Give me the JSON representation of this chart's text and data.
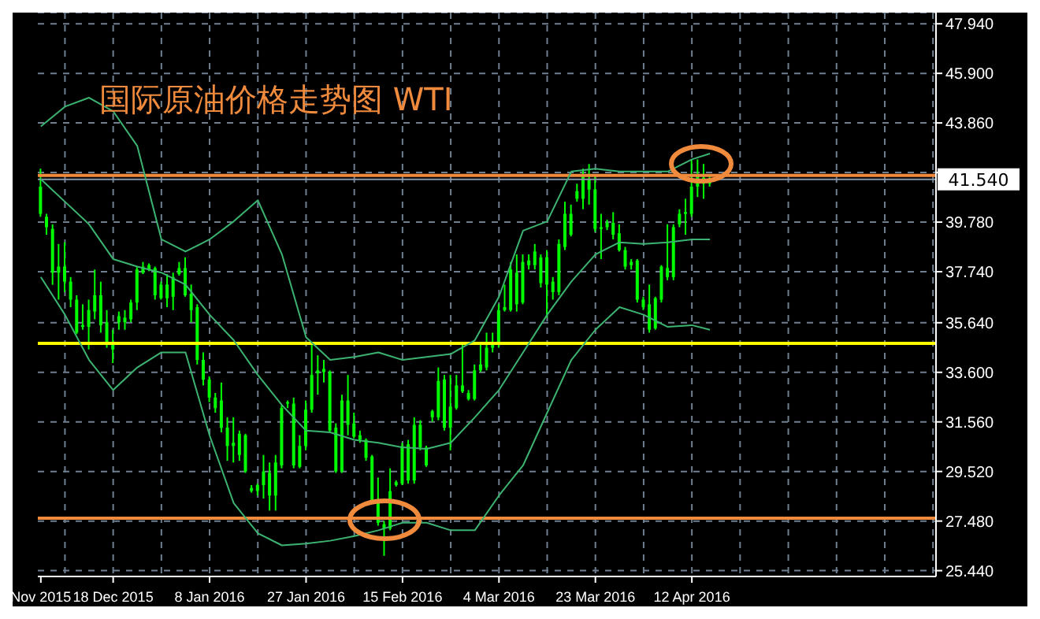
{
  "chart_data": {
    "type": "candlestick",
    "title": "国际原油价格走势图 WTI",
    "categories": [
      "Nov 2015",
      null,
      null,
      null,
      null,
      null,
      null,
      null,
      null,
      null,
      null,
      null,
      "18 Dec 2015",
      null,
      null,
      null,
      null,
      null,
      null,
      null,
      null,
      null,
      null,
      null,
      null,
      null,
      null,
      null,
      "8 Jan 2016",
      null,
      null,
      null,
      null,
      null,
      null,
      null,
      null,
      null,
      null,
      null,
      null,
      null,
      null,
      null,
      "27 Jan 2016",
      null,
      null,
      null,
      null,
      null,
      null,
      null,
      null,
      null,
      null,
      null,
      null,
      null,
      null,
      null,
      "15 Feb 2016",
      null,
      null,
      null,
      null,
      null,
      null,
      null,
      null,
      null,
      null,
      null,
      null,
      null,
      null,
      null,
      "4 Mar 2016",
      null,
      null,
      null,
      null,
      null,
      null,
      null,
      null,
      null,
      null,
      null,
      null,
      null,
      null,
      null,
      "23 Mar 2016",
      null,
      null,
      null,
      null,
      null,
      null,
      null,
      null,
      null,
      null,
      null,
      null,
      null,
      null,
      null,
      "12 Apr 2016",
      null,
      null,
      null,
      null,
      null,
      null,
      null,
      null,
      null,
      null,
      null,
      null,
      null,
      null,
      null,
      null,
      null,
      null,
      null,
      null,
      null,
      null,
      null,
      null,
      null,
      null,
      null,
      null,
      null,
      null,
      null,
      null,
      null,
      null,
      null,
      null,
      null,
      null,
      null,
      null
    ],
    "series": [
      {
        "type": "candlestick",
        "color": "#00ff00",
        "ohlc": [
          [
            41.24,
            41.98,
            40.0,
            40.12
          ],
          [
            40.0,
            40.12,
            39.26,
            39.57
          ],
          [
            39.5,
            39.69,
            37.2,
            37.7
          ],
          [
            37.95,
            38.88,
            36.59,
            37.7
          ],
          [
            37.95,
            38.95,
            36.9,
            37.33
          ],
          [
            37.33,
            37.52,
            36.28,
            36.59
          ],
          [
            36.59,
            36.77,
            35.17,
            35.23
          ],
          [
            35.54,
            36.4,
            35.35,
            35.47
          ],
          [
            36.16,
            36.59,
            34.54,
            35.47
          ],
          [
            36.77,
            37.83,
            35.78,
            36.1
          ],
          [
            36.77,
            37.33,
            35.23,
            35.54
          ],
          [
            35.66,
            36.16,
            34.61,
            34.73
          ],
          [
            34.85,
            35.35,
            33.98,
            34.54
          ],
          [
            35.91,
            36.1,
            35.35,
            35.66
          ],
          [
            35.85,
            36.16,
            35.35,
            35.66
          ],
          [
            36.47,
            36.59,
            35.66,
            35.78
          ],
          [
            37.83,
            37.95,
            36.16,
            36.47
          ],
          [
            37.95,
            38.14,
            37.64,
            37.7
          ],
          [
            38.01,
            38.08,
            37.76,
            37.83
          ],
          [
            37.89,
            37.95,
            36.59,
            36.77
          ],
          [
            37.21,
            37.33,
            36.59,
            36.65
          ],
          [
            37.21,
            37.64,
            36.28,
            36.65
          ],
          [
            37.52,
            37.7,
            36.16,
            36.71
          ],
          [
            37.89,
            38.14,
            37.58,
            37.64
          ],
          [
            37.89,
            38.33,
            36.71,
            36.77
          ],
          [
            36.83,
            37.21,
            35.66,
            36.16
          ],
          [
            36.28,
            36.4,
            33.92,
            34.11
          ],
          [
            34.11,
            34.42,
            33.06,
            33.3
          ],
          [
            33.3,
            33.43,
            32.37,
            32.56
          ],
          [
            32.56,
            32.75,
            31.94,
            32.13
          ],
          [
            32.44,
            33.18,
            31.13,
            31.32
          ],
          [
            31.32,
            31.75,
            29.96,
            30.57
          ],
          [
            30.7,
            31.75,
            29.89,
            30.57
          ],
          [
            31.07,
            31.2,
            29.96,
            30.2
          ],
          [
            31.01,
            31.07,
            29.46,
            29.52
          ],
          [
            28.84,
            28.96,
            28.65,
            28.72
          ],
          [
            28.96,
            29.02,
            28.53,
            28.72
          ],
          [
            29.52,
            30.2,
            28.41,
            28.96
          ],
          [
            29.46,
            29.89,
            27.91,
            28.53
          ],
          [
            29.89,
            30.2,
            27.91,
            28.53
          ],
          [
            32.13,
            32.25,
            29.65,
            29.77
          ],
          [
            32.37,
            32.44,
            32.13,
            32.31
          ],
          [
            32.31,
            32.56,
            29.65,
            29.77
          ],
          [
            30.57,
            31.01,
            29.65,
            29.71
          ],
          [
            32.06,
            32.44,
            30.39,
            30.57
          ],
          [
            33.49,
            34.85,
            31.94,
            32.06
          ],
          [
            33.68,
            34.3,
            32.68,
            33.56
          ],
          [
            33.74,
            34.11,
            33.18,
            33.61
          ],
          [
            33.61,
            33.68,
            31.13,
            31.2
          ],
          [
            31.32,
            31.5,
            29.46,
            29.52
          ],
          [
            32.44,
            32.68,
            29.46,
            29.52
          ],
          [
            32.44,
            33.49,
            31.01,
            31.44
          ],
          [
            31.5,
            31.94,
            30.88,
            30.95
          ],
          [
            31.01,
            31.2,
            30.7,
            30.82
          ],
          [
            30.82,
            30.88,
            29.96,
            30.08
          ],
          [
            30.14,
            30.2,
            28.22,
            28.34
          ],
          [
            28.34,
            29.27,
            27.29,
            27.41
          ],
          [
            27.35,
            27.48,
            26.05,
            27.17
          ],
          [
            28.71,
            29.65,
            27.1,
            27.17
          ],
          [
            29.08,
            29.15,
            28.9,
            28.96
          ],
          [
            30.57,
            30.7,
            28.96,
            29.02
          ],
          [
            30.64,
            30.82,
            29.02,
            29.15
          ],
          [
            31.44,
            31.75,
            29.02,
            29.15
          ],
          [
            31.44,
            31.63,
            30.39,
            30.51
          ],
          [
            30.51,
            30.58,
            29.71,
            29.77
          ],
          [
            32.0,
            32.06,
            31.57,
            31.75
          ],
          [
            33.24,
            33.8,
            31.63,
            31.75
          ],
          [
            33.3,
            33.49,
            31.2,
            31.32
          ],
          [
            32.19,
            33.49,
            30.39,
            31.32
          ],
          [
            33.06,
            33.49,
            32.06,
            32.13
          ],
          [
            33.06,
            34.73,
            32.75,
            32.81
          ],
          [
            32.75,
            32.87,
            32.44,
            32.5
          ],
          [
            33.68,
            33.92,
            32.44,
            32.5
          ],
          [
            33.92,
            34.73,
            33.61,
            33.68
          ],
          [
            34.61,
            35.23,
            33.68,
            33.8
          ],
          [
            34.73,
            35.23,
            34.42,
            34.61
          ],
          [
            36.16,
            36.4,
            34.61,
            34.73
          ],
          [
            36.28,
            37.21,
            36.1,
            36.16
          ],
          [
            37.83,
            38.14,
            36.1,
            36.16
          ],
          [
            37.7,
            38.45,
            36.1,
            36.4
          ],
          [
            38.14,
            38.45,
            36.4,
            36.47
          ],
          [
            38.2,
            38.45,
            37.83,
            38.01
          ],
          [
            38.57,
            38.88,
            37.83,
            38.01
          ],
          [
            38.33,
            38.45,
            37.09,
            37.27
          ],
          [
            38.33,
            38.63,
            35.85,
            37.21
          ],
          [
            37.33,
            37.52,
            36.59,
            36.9
          ],
          [
            38.88,
            39.07,
            36.77,
            36.9
          ],
          [
            40.12,
            40.62,
            38.63,
            38.76
          ],
          [
            40.12,
            40.5,
            39.19,
            39.26
          ],
          [
            41.05,
            41.36,
            40.62,
            40.74
          ],
          [
            41.67,
            41.98,
            40.31,
            40.74
          ],
          [
            41.55,
            42.17,
            40.5,
            41.12
          ],
          [
            41.12,
            41.67,
            39.38,
            39.5
          ],
          [
            39.57,
            40.12,
            38.26,
            39.5
          ],
          [
            39.75,
            39.88,
            39.45,
            39.57
          ],
          [
            39.75,
            40.19,
            39.07,
            39.26
          ],
          [
            39.32,
            39.69,
            38.57,
            38.63
          ],
          [
            38.63,
            38.76,
            37.83,
            37.95
          ],
          [
            38.14,
            38.26,
            37.83,
            38.01
          ],
          [
            38.2,
            38.26,
            36.47,
            36.59
          ],
          [
            36.59,
            36.71,
            36.16,
            36.28
          ],
          [
            36.4,
            37.21,
            35.23,
            35.35
          ],
          [
            36.65,
            36.71,
            35.35,
            35.41
          ],
          [
            37.95,
            38.01,
            36.47,
            36.59
          ],
          [
            37.89,
            39.69,
            37.39,
            37.52
          ],
          [
            39.57,
            39.69,
            37.39,
            37.52
          ],
          [
            40.12,
            40.31,
            39.57,
            39.69
          ],
          [
            40.19,
            40.74,
            39.26,
            40.12
          ],
          [
            41.24,
            42.36,
            40.0,
            40.12
          ],
          [
            41.67,
            42.36,
            40.81,
            41.24
          ],
          [
            41.61,
            42.17,
            40.74,
            41.36
          ],
          [
            41.49,
            41.67,
            41.24,
            41.36
          ],
          null,
          null,
          null,
          null,
          null,
          null,
          null,
          null,
          null,
          null,
          null,
          null,
          null,
          null,
          null,
          null,
          null,
          null,
          null,
          null,
          null,
          null,
          null,
          null,
          null,
          null,
          null,
          null,
          null,
          null,
          null,
          null,
          null,
          null,
          null,
          null,
          null
        ]
      },
      {
        "type": "line",
        "color": "#3cb371",
        "values": [
          43.72,
          null,
          null,
          null,
          44.53,
          null,
          null,
          null,
          44.9,
          null,
          null,
          null,
          44.34,
          null,
          null,
          null,
          42.91,
          null,
          null,
          null,
          39.07,
          null,
          null,
          null,
          38.57,
          null,
          null,
          null,
          39.07,
          null,
          null,
          null,
          39.81,
          null,
          null,
          null,
          40.68,
          null,
          null,
          null,
          38.45,
          null,
          null,
          null,
          35.04,
          null,
          null,
          null,
          34.11,
          null,
          null,
          null,
          34.23,
          null,
          null,
          null,
          34.42,
          null,
          null,
          null,
          34.11,
          null,
          null,
          null,
          34.23,
          null,
          null,
          null,
          34.35,
          null,
          null,
          null,
          34.92,
          null,
          null,
          null,
          36.71,
          null,
          null,
          null,
          39.43,
          null,
          null,
          null,
          39.81,
          null,
          null,
          null,
          41.86,
          null,
          null,
          null,
          41.98,
          null,
          null,
          null,
          41.86,
          null,
          null,
          null,
          41.86,
          null,
          null,
          null,
          41.86,
          null,
          null,
          null,
          42.36,
          null,
          null,
          42.6,
          null,
          null,
          null,
          null,
          null,
          null,
          null,
          null,
          null,
          null,
          null,
          null,
          null,
          null,
          null,
          null,
          null,
          null,
          null,
          null,
          null,
          null,
          null,
          null,
          null,
          null,
          null,
          null,
          null,
          null,
          null,
          null,
          null,
          null,
          null,
          null,
          null
        ]
      },
      {
        "type": "line",
        "color": "#3cb371",
        "values": [
          41.55,
          null,
          null,
          null,
          40.62,
          null,
          null,
          null,
          39.69,
          null,
          null,
          null,
          38.26,
          null,
          null,
          null,
          37.95,
          null,
          null,
          null,
          37.7,
          null,
          null,
          null,
          37.21,
          null,
          null,
          null,
          35.97,
          null,
          null,
          null,
          34.92,
          null,
          null,
          null,
          33.49,
          null,
          null,
          null,
          32.25,
          null,
          null,
          null,
          31.2,
          null,
          null,
          null,
          31.13,
          null,
          null,
          null,
          30.82,
          null,
          null,
          null,
          30.7,
          null,
          null,
          null,
          30.51,
          null,
          null,
          null,
          30.45,
          null,
          null,
          null,
          30.7,
          null,
          null,
          null,
          31.75,
          null,
          null,
          null,
          32.87,
          null,
          null,
          null,
          34.42,
          null,
          null,
          null,
          35.97,
          null,
          null,
          null,
          37.33,
          null,
          null,
          null,
          38.45,
          null,
          null,
          null,
          38.95,
          null,
          null,
          null,
          38.88,
          null,
          null,
          null,
          38.95,
          null,
          null,
          null,
          39.07,
          null,
          null,
          39.07,
          null,
          null,
          null,
          null,
          null,
          null,
          null,
          null,
          null,
          null,
          null,
          null,
          null,
          null,
          null,
          null,
          null,
          null,
          null,
          null,
          null,
          null,
          null,
          null,
          null,
          null,
          null,
          null,
          null,
          null,
          null,
          null,
          null,
          null,
          null,
          null,
          null
        ]
      },
      {
        "type": "line",
        "color": "#3cb371",
        "values": [
          37.52,
          null,
          null,
          null,
          35.97,
          null,
          null,
          null,
          34.11,
          null,
          null,
          null,
          32.87,
          null,
          null,
          null,
          33.8,
          null,
          null,
          null,
          34.42,
          null,
          null,
          null,
          34.42,
          null,
          null,
          null,
          31.0,
          null,
          null,
          null,
          28.22,
          null,
          null,
          null,
          26.98,
          null,
          null,
          null,
          26.48,
          null,
          null,
          null,
          26.55,
          null,
          null,
          null,
          26.67,
          null,
          null,
          null,
          26.86,
          null,
          null,
          null,
          27.1,
          null,
          null,
          null,
          27.41,
          null,
          null,
          null,
          27.41,
          null,
          null,
          null,
          27.1,
          null,
          null,
          null,
          27.1,
          null,
          null,
          null,
          28.53,
          null,
          null,
          null,
          29.77,
          null,
          null,
          null,
          31.94,
          null,
          null,
          null,
          34.11,
          null,
          null,
          null,
          35.35,
          null,
          null,
          null,
          36.28,
          null,
          null,
          null,
          35.97,
          null,
          null,
          null,
          35.47,
          null,
          null,
          null,
          35.54,
          null,
          null,
          35.35,
          null,
          null,
          null,
          null,
          null,
          null,
          null,
          null,
          null,
          null,
          null,
          null,
          null,
          null,
          null,
          null,
          null,
          null,
          null,
          null,
          null,
          null,
          null,
          null,
          null,
          null,
          null,
          null,
          null,
          null,
          null,
          null,
          null,
          null,
          null,
          null,
          null
        ]
      }
    ],
    "ylim": [
      25.2,
      48.4
    ],
    "yticks": [
      {
        "value": 25.44,
        "label": "25.440"
      },
      {
        "value": 27.48,
        "label": "27.480"
      },
      {
        "value": 29.52,
        "label": "29.520"
      },
      {
        "value": 31.56,
        "label": "31.560"
      },
      {
        "value": 33.6,
        "label": "33.600"
      },
      {
        "value": 35.64,
        "label": "35.640"
      },
      {
        "value": 37.74,
        "label": "37.740"
      },
      {
        "value": 39.78,
        "label": "39.780"
      },
      {
        "value": 41.82,
        "label": null
      },
      {
        "value": 43.86,
        "label": "43.860"
      },
      {
        "value": 45.9,
        "label": "45.900"
      },
      {
        "value": 47.94,
        "label": "47.940"
      }
    ],
    "ref_lines": [
      {
        "axis": "y",
        "value": 34.79,
        "color": "#ffff00"
      },
      {
        "axis": "y",
        "value": 27.6,
        "color": "#f08a3c"
      },
      {
        "axis": "y",
        "value": 41.7,
        "color": "#f08a3c"
      },
      {
        "axis": "y",
        "value": 41.54,
        "label": "41.540",
        "color": "#8899aa"
      }
    ],
    "grid": true,
    "legend": false
  }
}
